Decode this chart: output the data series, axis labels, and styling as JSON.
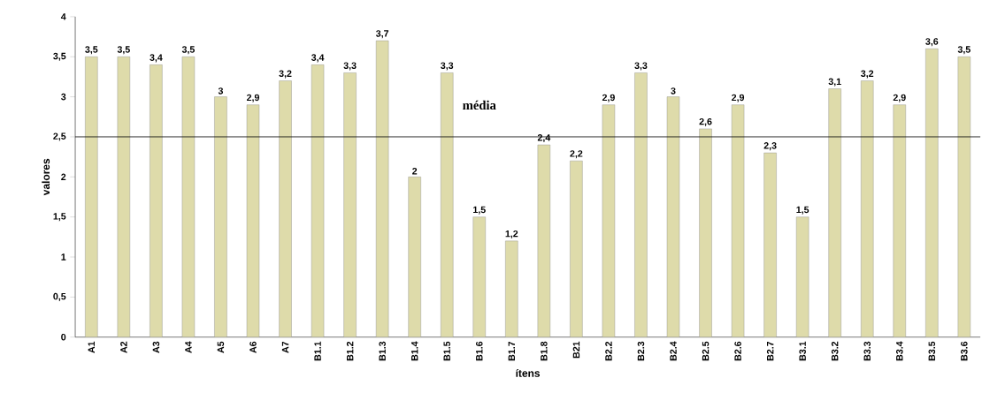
{
  "chart_data": {
    "type": "bar",
    "xlabel": "ítens",
    "ylabel": "valores",
    "categories": [
      "A1",
      "A2",
      "A3",
      "A4",
      "A5",
      "A6",
      "A7",
      "B1.1",
      "B1.2",
      "B1.3",
      "B1.4",
      "B1.5",
      "B1.6",
      "B1.7",
      "B1.8",
      "B21",
      "B2.2",
      "B2.3",
      "B2.4",
      "B2.5",
      "B2.6",
      "B2.7",
      "B3.1",
      "B3.2",
      "B3.3",
      "B3.4",
      "B3.5",
      "B3.6"
    ],
    "values": [
      3.5,
      3.5,
      3.4,
      3.5,
      3,
      2.9,
      3.2,
      3.4,
      3.3,
      3.7,
      2,
      3.3,
      1.5,
      1.2,
      2.4,
      2.2,
      2.9,
      3.3,
      3,
      2.6,
      2.9,
      2.3,
      1.5,
      3.1,
      3.2,
      2.9,
      3.6,
      3.5
    ],
    "value_labels": [
      "3,5",
      "3,5",
      "3,4",
      "3,5",
      "3",
      "2,9",
      "3,2",
      "3,4",
      "3,3",
      "3,7",
      "2",
      "3,3",
      "1,5",
      "1,2",
      "2,4",
      "2,2",
      "2,9",
      "3,3",
      "3",
      "2,6",
      "2,9",
      "2,3",
      "1,5",
      "3,1",
      "3,2",
      "2,9",
      "3,6",
      "3,5"
    ],
    "color": "#dedbaa",
    "ylim": [
      0,
      4
    ],
    "yticks": [
      0,
      {
        "value": 0.5,
        "label": "0,5"
      },
      1,
      {
        "value": 1.5,
        "label": "1,5"
      },
      2,
      {
        "value": 2.5,
        "label": "2,5"
      },
      3,
      {
        "value": 3.5,
        "label": "3,5"
      },
      4
    ],
    "ref_lines": [
      {
        "axis": "y",
        "value": 2.5,
        "label": "média",
        "color": "#000000"
      }
    ]
  }
}
